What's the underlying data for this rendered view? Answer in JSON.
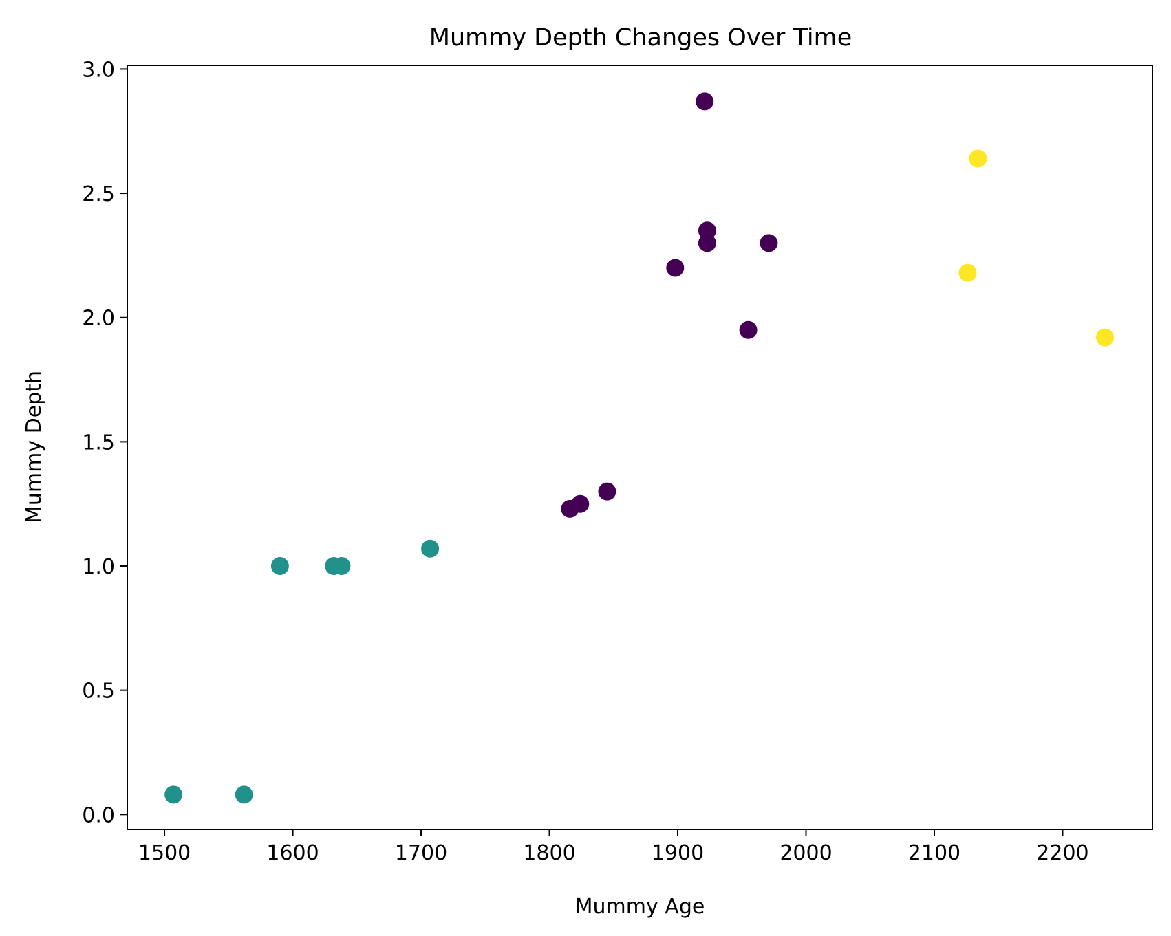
{
  "chart_data": {
    "type": "scatter",
    "title": "Mummy Depth Changes Over Time",
    "xlabel": "Mummy Age",
    "ylabel": "Mummy Depth",
    "xlim": [
      1471,
      2270
    ],
    "ylim": [
      -0.06,
      3.015
    ],
    "xticks": [
      1500,
      1600,
      1700,
      1800,
      1900,
      2000,
      2100,
      2200
    ],
    "xtick_labels": [
      "1500",
      "1600",
      "1700",
      "1800",
      "1900",
      "2000",
      "2100",
      "2200"
    ],
    "yticks": [
      0.0,
      0.5,
      1.0,
      1.5,
      2.0,
      2.5,
      3.0
    ],
    "ytick_labels": [
      "0.0",
      "0.5",
      "1.0",
      "1.5",
      "2.0",
      "2.5",
      "3.0"
    ],
    "grid": false,
    "legend": "none",
    "points": [
      {
        "x": 1507,
        "y": 0.08,
        "color": "#21918c"
      },
      {
        "x": 1562,
        "y": 0.08,
        "color": "#21918c"
      },
      {
        "x": 1590,
        "y": 1.0,
        "color": "#21918c"
      },
      {
        "x": 1632,
        "y": 1.0,
        "color": "#21918c"
      },
      {
        "x": 1638,
        "y": 1.0,
        "color": "#21918c"
      },
      {
        "x": 1707,
        "y": 1.07,
        "color": "#21918c"
      },
      {
        "x": 1816,
        "y": 1.23,
        "color": "#440154"
      },
      {
        "x": 1824,
        "y": 1.25,
        "color": "#440154"
      },
      {
        "x": 1845,
        "y": 1.3,
        "color": "#440154"
      },
      {
        "x": 1898,
        "y": 2.2,
        "color": "#440154"
      },
      {
        "x": 1921,
        "y": 2.87,
        "color": "#440154"
      },
      {
        "x": 1923,
        "y": 2.35,
        "color": "#440154"
      },
      {
        "x": 1923,
        "y": 2.3,
        "color": "#440154"
      },
      {
        "x": 1955,
        "y": 1.95,
        "color": "#440154"
      },
      {
        "x": 1971,
        "y": 2.3,
        "color": "#440154"
      },
      {
        "x": 2126,
        "y": 2.18,
        "color": "#fde725"
      },
      {
        "x": 2134,
        "y": 2.64,
        "color": "#fde725"
      },
      {
        "x": 2233,
        "y": 1.92,
        "color": "#fde725"
      }
    ]
  }
}
